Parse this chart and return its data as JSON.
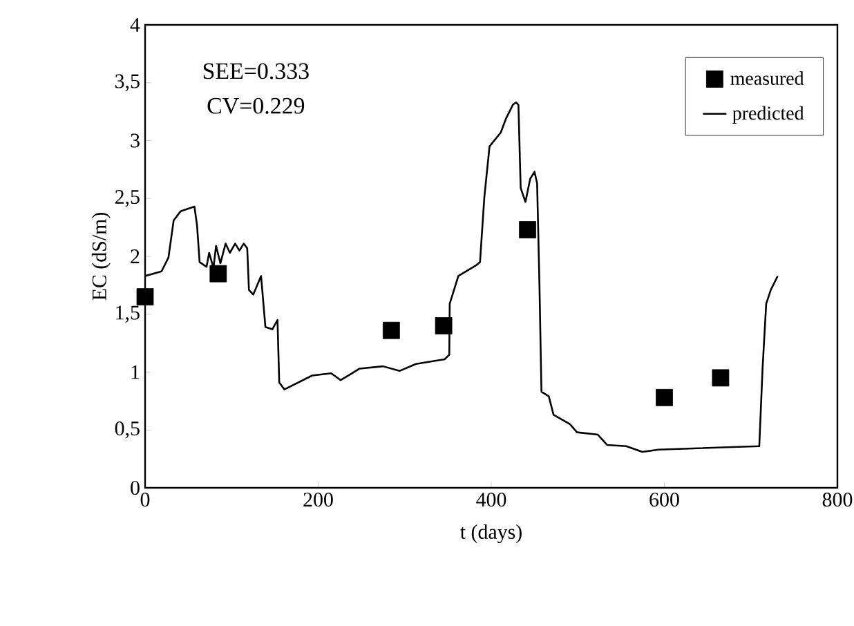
{
  "chart_data": {
    "type": "line",
    "xlabel": "t (days)",
    "ylabel": "EC (dS/m)",
    "xlim": [
      0,
      800
    ],
    "xticks": [
      0,
      200,
      400,
      600,
      800
    ],
    "ylim": [
      0,
      4
    ],
    "yticks": [
      0,
      {
        "value": 0.5,
        "label": "0,5"
      },
      1,
      {
        "value": 1.5,
        "label": "1,5"
      },
      2,
      {
        "value": 2.5,
        "label": "2,5"
      },
      3,
      {
        "value": 3.5,
        "label": "3,5"
      },
      4
    ],
    "grid": false,
    "legend": "top right",
    "annotations": [
      "SEE=0.333",
      "CV=0.229"
    ],
    "series": [
      {
        "name": "measured",
        "type": "scatter",
        "marker": "square",
        "color": "#000000",
        "x": [
          0,
          84.5,
          284.5,
          345,
          442,
          600,
          665
        ],
        "values": [
          1.65,
          1.85,
          1.36,
          1.4,
          2.23,
          0.78,
          0.95
        ]
      },
      {
        "name": "predicted",
        "type": "line",
        "line_style": "solid",
        "color": "#000000",
        "x": [
          0,
          19,
          27,
          33,
          41,
          57,
          60,
          63,
          71,
          74,
          79,
          82,
          87,
          93,
          98,
          104,
          109,
          114,
          118,
          120,
          125,
          134,
          139,
          147,
          153,
          155,
          161,
          193,
          215,
          226,
          248,
          275,
          294,
          313,
          346,
          351.5,
          352,
          357,
          362,
          382,
          387,
          392,
          398,
          411,
          417,
          425,
          428.6,
          431.4,
          434,
          439.5,
          445,
          450,
          453,
          455.7,
          458,
          466.5,
          472,
          491,
          499,
          523,
          534,
          556,
          574.6,
          593.5,
          709.7,
          713.5,
          717.7,
          723,
          731
        ],
        "values": [
          1.83,
          1.87,
          1.99,
          2.31,
          2.39,
          2.43,
          2.27,
          1.95,
          1.91,
          2.03,
          1.9,
          2.09,
          1.94,
          2.11,
          2.03,
          2.11,
          2.05,
          2.11,
          2.07,
          1.71,
          1.67,
          1.83,
          1.39,
          1.37,
          1.45,
          0.91,
          0.85,
          0.97,
          0.99,
          0.93,
          1.03,
          1.05,
          1.01,
          1.07,
          1.11,
          1.15,
          1.59,
          1.71,
          1.83,
          1.92,
          1.95,
          2.51,
          2.95,
          3.07,
          3.19,
          3.31,
          3.33,
          3.31,
          2.59,
          2.47,
          2.67,
          2.73,
          2.63,
          1.75,
          0.83,
          0.79,
          0.63,
          0.55,
          0.48,
          0.46,
          0.37,
          0.36,
          0.31,
          0.33,
          0.36,
          1.03,
          1.59,
          1.71,
          1.83
        ]
      }
    ]
  }
}
